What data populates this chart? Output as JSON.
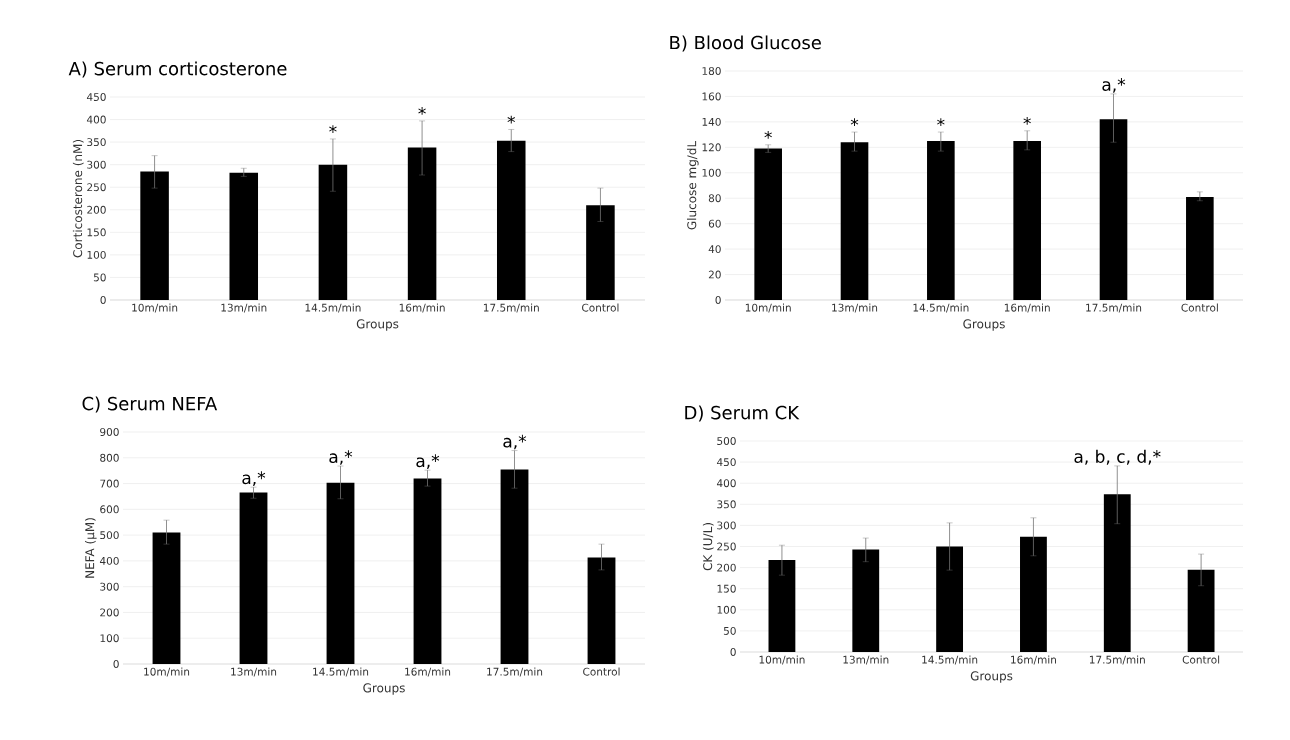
{
  "chart_data": [
    {
      "type": "bar",
      "title": "A) Serum corticosterone",
      "xlabel": "Groups",
      "ylabel": "Corticosterone (nM)",
      "color": "#000000",
      "grid": "y",
      "categories": [
        "10m/min",
        "13m/min",
        "14.5m/min",
        "16m/min",
        "17.5m/min",
        "Control"
      ],
      "values": [
        285,
        282,
        300,
        338,
        353,
        210
      ],
      "errors": [
        [
          248,
          320
        ],
        [
          274,
          292
        ],
        [
          241,
          357
        ],
        [
          277,
          397
        ],
        [
          329,
          378
        ],
        [
          174,
          248
        ]
      ],
      "ylim": [
        0,
        450
      ],
      "yticks": [
        0,
        50,
        100,
        150,
        200,
        250,
        300,
        350,
        400,
        450
      ],
      "annotations": [
        {
          "text": "*",
          "x": "14.5m/min",
          "y": 357
        },
        {
          "text": "*",
          "x": "16m/min",
          "y": 397
        },
        {
          "text": "*",
          "x": "17.5m/min",
          "y": 378
        }
      ]
    },
    {
      "type": "bar",
      "title": "B) Blood Glucose",
      "xlabel": "Groups",
      "ylabel": "Glucose mg/dL",
      "color": "#000000",
      "grid": "y",
      "categories": [
        "10m/min",
        "13m/min",
        "14.5m/min",
        "16m/min",
        "17.5m/min",
        "Control"
      ],
      "values": [
        119,
        124,
        125,
        125,
        142,
        81
      ],
      "errors": [
        [
          116,
          122
        ],
        [
          117,
          132
        ],
        [
          117,
          132
        ],
        [
          118,
          133
        ],
        [
          124,
          162
        ],
        [
          78,
          85
        ]
      ],
      "ylim": [
        0,
        180
      ],
      "yticks": [
        0,
        20,
        40,
        60,
        80,
        100,
        120,
        140,
        160,
        180
      ],
      "annotations": [
        {
          "text": "*",
          "x": "10m/min",
          "y": 122
        },
        {
          "text": "*",
          "x": "13m/min",
          "y": 132
        },
        {
          "text": "*",
          "x": "14.5m/min",
          "y": 132
        },
        {
          "text": "*",
          "x": "16m/min",
          "y": 133
        },
        {
          "text": "a,*",
          "x": "17.5m/min",
          "y": 162
        }
      ]
    },
    {
      "type": "bar",
      "title": "C) Serum NEFA",
      "xlabel": "Groups",
      "ylabel": "NEFA (µM)",
      "color": "#000000",
      "grid": "y",
      "categories": [
        "10m/min",
        "13m/min",
        "14.5m/min",
        "16m/min",
        "17.5m/min",
        "Control"
      ],
      "values": [
        510,
        665,
        703,
        720,
        755,
        413
      ],
      "errors": [
        [
          465,
          558
        ],
        [
          643,
          686
        ],
        [
          641,
          768
        ],
        [
          690,
          752
        ],
        [
          682,
          828
        ],
        [
          365,
          465
        ]
      ],
      "ylim": [
        0,
        900
      ],
      "yticks": [
        0,
        100,
        200,
        300,
        400,
        500,
        600,
        700,
        800,
        900
      ],
      "annotations": [
        {
          "text": "a,*",
          "x": "13m/min",
          "y": 686
        },
        {
          "text": "a,*",
          "x": "14.5m/min",
          "y": 768
        },
        {
          "text": "a,*",
          "x": "16m/min",
          "y": 752
        },
        {
          "text": "a,*",
          "x": "17.5m/min",
          "y": 828
        }
      ]
    },
    {
      "type": "bar",
      "title": "D) Serum CK",
      "xlabel": "Groups",
      "ylabel": "CK (U/L)",
      "color": "#000000",
      "grid": "y",
      "categories": [
        "10m/min",
        "13m/min",
        "14.5m/min",
        "16m/min",
        "17.5m/min",
        "Control"
      ],
      "values": [
        218,
        243,
        250,
        273,
        374,
        195
      ],
      "errors": [
        [
          182,
          253
        ],
        [
          214,
          270
        ],
        [
          194,
          306
        ],
        [
          228,
          318
        ],
        [
          304,
          441
        ],
        [
          157,
          232
        ]
      ],
      "ylim": [
        0,
        500
      ],
      "yticks": [
        0,
        50,
        100,
        150,
        200,
        250,
        300,
        350,
        400,
        450,
        500
      ],
      "annotations": [
        {
          "text": "a, b, c, d,*",
          "x": "17.5m/min",
          "y": 441
        }
      ]
    }
  ]
}
